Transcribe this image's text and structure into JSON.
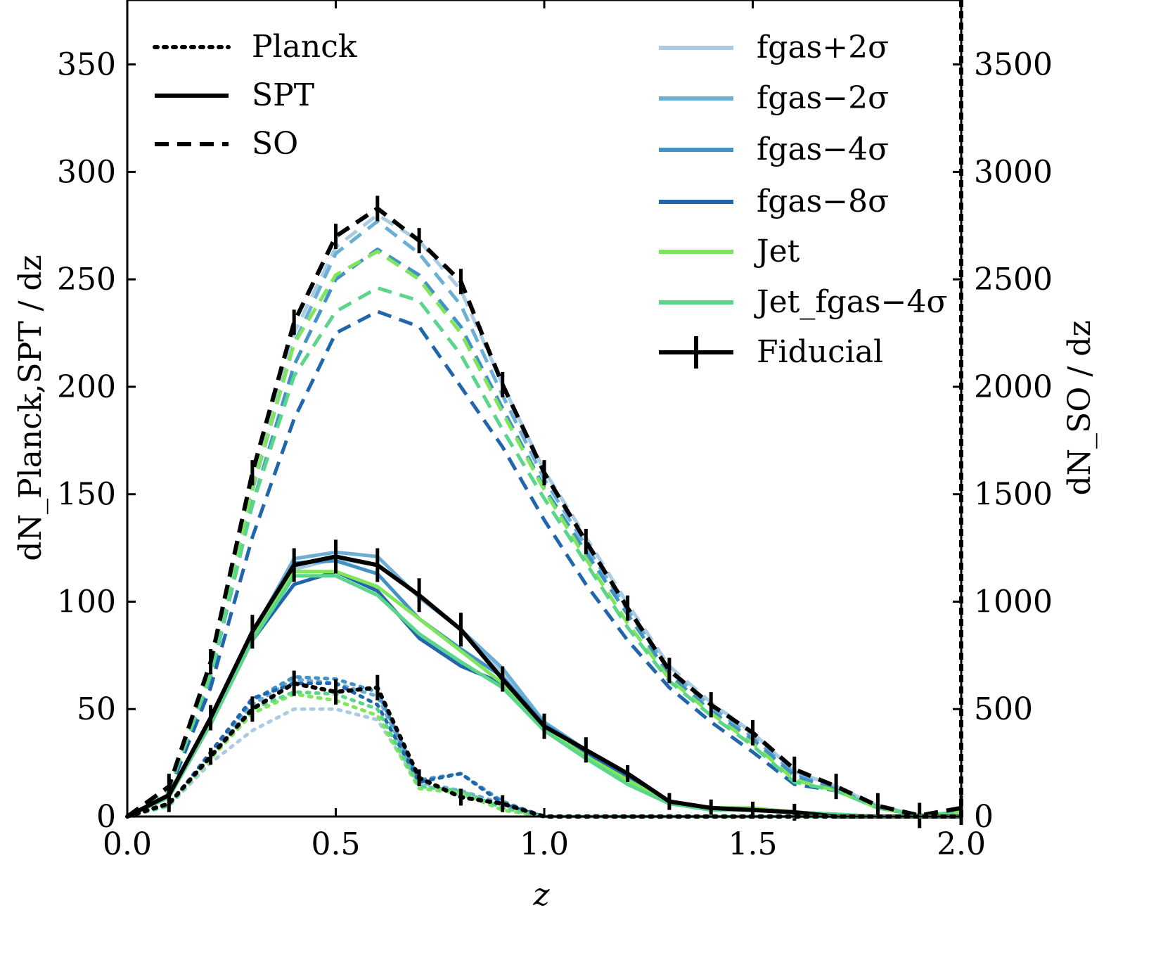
{
  "chart_data": {
    "type": "line",
    "xlabel": "z",
    "ylabel_left": "dN_Planck,SPT / dz",
    "ylabel_right": "dN_SO / dz",
    "xlim": [
      0,
      2
    ],
    "ylim_left": [
      0,
      380
    ],
    "ylim_right": [
      0,
      3800
    ],
    "x_ticks": [
      0,
      0.5,
      1,
      1.5,
      2
    ],
    "x_tick_labels": [
      "0.0",
      "0.5",
      "1.0",
      "1.5",
      "2.0"
    ],
    "y_ticks_left": [
      0,
      50,
      100,
      150,
      200,
      250,
      300,
      350
    ],
    "y_tick_labels_left": [
      "0",
      "50",
      "100",
      "150",
      "200",
      "250",
      "300",
      "350"
    ],
    "y_ticks_right": [
      0,
      500,
      1000,
      1500,
      2000,
      2500,
      3000,
      3500
    ],
    "y_tick_labels_right": [
      "0",
      "500",
      "1000",
      "1500",
      "2000",
      "2500",
      "3000",
      "3500"
    ],
    "x": [
      0,
      0.1,
      0.2,
      0.3,
      0.4,
      0.5,
      0.6,
      0.7,
      0.8,
      0.9,
      1.0,
      1.1,
      1.2,
      1.3,
      1.4,
      1.5,
      1.6,
      1.7,
      1.8,
      1.9,
      2.0
    ],
    "styles_legend": [
      {
        "name": "Planck",
        "dash": "dotted"
      },
      {
        "name": "SPT",
        "dash": "solid"
      },
      {
        "name": "SO",
        "dash": "dashed"
      }
    ],
    "models_legend": [
      {
        "name": "fgas+2σ",
        "color": "#a9cce3"
      },
      {
        "name": "fgas−2σ",
        "color": "#6baed6"
      },
      {
        "name": "fgas−4σ",
        "color": "#4292c6"
      },
      {
        "name": "fgas−8σ",
        "color": "#2166ac"
      },
      {
        "name": "Jet",
        "color": "#7fe55a"
      },
      {
        "name": "Jet_fgas−4σ",
        "color": "#5ad68a"
      },
      {
        "name": "Fiducial",
        "color": "#000000",
        "errorbars": true
      }
    ],
    "series": [
      {
        "name": "SO fgas+2σ",
        "survey": "SO",
        "axis": "right",
        "color": "#a9cce3",
        "values": [
          0,
          140,
          700,
          1550,
          2250,
          2650,
          2800,
          2680,
          2450,
          2010,
          1610,
          1300,
          990,
          700,
          530,
          390,
          210,
          140,
          50,
          5,
          20
        ]
      },
      {
        "name": "SO fgas−2σ",
        "survey": "SO",
        "axis": "right",
        "color": "#6baed6",
        "values": [
          0,
          130,
          680,
          1520,
          2200,
          2620,
          2770,
          2620,
          2380,
          1960,
          1570,
          1260,
          960,
          680,
          510,
          370,
          200,
          130,
          45,
          5,
          20
        ]
      },
      {
        "name": "SO fgas−4σ",
        "survey": "SO",
        "axis": "right",
        "color": "#4292c6",
        "values": [
          0,
          125,
          650,
          1450,
          2100,
          2500,
          2640,
          2520,
          2280,
          1900,
          1530,
          1230,
          940,
          660,
          490,
          360,
          190,
          125,
          42,
          5,
          20
        ]
      },
      {
        "name": "SO fgas−8σ",
        "survey": "SO",
        "axis": "right",
        "color": "#2166ac",
        "values": [
          0,
          115,
          600,
          1300,
          1850,
          2250,
          2350,
          2280,
          2000,
          1720,
          1380,
          1080,
          820,
          600,
          440,
          300,
          150,
          120,
          40,
          5,
          20
        ]
      },
      {
        "name": "SO Jet",
        "survey": "SO",
        "axis": "right",
        "color": "#7fe55a",
        "values": [
          0,
          130,
          690,
          1530,
          2200,
          2520,
          2630,
          2500,
          2250,
          1880,
          1520,
          1200,
          900,
          640,
          480,
          340,
          170,
          120,
          40,
          5,
          20
        ]
      },
      {
        "name": "SO Jet_fgas−4σ",
        "survey": "SO",
        "axis": "right",
        "color": "#5ad68a",
        "values": [
          0,
          125,
          660,
          1450,
          2050,
          2350,
          2460,
          2400,
          2150,
          1800,
          1480,
          1180,
          880,
          630,
          470,
          330,
          160,
          120,
          40,
          5,
          20
        ]
      },
      {
        "name": "SO Fiducial",
        "survey": "SO",
        "axis": "right",
        "color": "#000000",
        "errorbars": true,
        "values": [
          0,
          140,
          720,
          1600,
          2300,
          2700,
          2830,
          2680,
          2490,
          2010,
          1600,
          1280,
          970,
          680,
          520,
          390,
          220,
          140,
          50,
          5,
          40
        ]
      },
      {
        "name": "SPT fgas+2σ",
        "survey": "SPT",
        "axis": "left",
        "color": "#a9cce3",
        "values": [
          0,
          10,
          45,
          84,
          115,
          120,
          117,
          103,
          87,
          67,
          43,
          30,
          20,
          7,
          4,
          3,
          2,
          1,
          0,
          0,
          0
        ]
      },
      {
        "name": "SPT fgas−2σ",
        "survey": "SPT",
        "axis": "left",
        "color": "#6baed6",
        "values": [
          0,
          10,
          45,
          85,
          120,
          123,
          121,
          102,
          87,
          69,
          44,
          31,
          20,
          7,
          4,
          3,
          2,
          1,
          0,
          0,
          0
        ]
      },
      {
        "name": "SPT fgas−4σ",
        "survey": "SPT",
        "axis": "left",
        "color": "#4292c6",
        "values": [
          0,
          10,
          44,
          83,
          118,
          119,
          113,
          92,
          78,
          65,
          43,
          31,
          19,
          7,
          4,
          3,
          2,
          1,
          0,
          0,
          0
        ]
      },
      {
        "name": "SPT fgas−8σ",
        "survey": "SPT",
        "axis": "left",
        "color": "#2166ac",
        "values": [
          0,
          10,
          43,
          82,
          108,
          114,
          105,
          83,
          70,
          62,
          42,
          30,
          18,
          6,
          4,
          3,
          2,
          1,
          0,
          0,
          0
        ]
      },
      {
        "name": "SPT Jet",
        "survey": "SPT",
        "axis": "left",
        "color": "#7fe55a",
        "values": [
          0,
          9,
          44,
          83,
          114,
          114,
          107,
          92,
          77,
          62,
          41,
          28,
          17,
          6,
          4,
          4,
          2,
          1,
          0,
          0,
          0
        ]
      },
      {
        "name": "SPT Jet_fgas−4σ",
        "survey": "SPT",
        "axis": "left",
        "color": "#5ad68a",
        "values": [
          0,
          9,
          43,
          82,
          112,
          112,
          103,
          85,
          72,
          60,
          40,
          27,
          15,
          6,
          3,
          3,
          2,
          1,
          0,
          0,
          0
        ]
      },
      {
        "name": "SPT Fiducial",
        "survey": "SPT",
        "axis": "left",
        "color": "#000000",
        "errorbars": true,
        "values": [
          0,
          10,
          46,
          86,
          117,
          121,
          117,
          103,
          87,
          64,
          42,
          31,
          20,
          7,
          4,
          3,
          2,
          0,
          0,
          0,
          0
        ]
      },
      {
        "name": "Planck fgas+2σ",
        "survey": "Planck",
        "axis": "left",
        "color": "#a9cce3",
        "values": [
          0,
          5,
          25,
          40,
          50,
          50,
          45,
          15,
          10,
          5,
          0,
          0,
          0,
          0,
          0,
          0,
          0,
          0,
          0,
          0,
          0
        ]
      },
      {
        "name": "Planck fgas−2σ",
        "survey": "Planck",
        "axis": "left",
        "color": "#6baed6",
        "values": [
          0,
          5,
          30,
          52,
          64,
          62,
          56,
          16,
          12,
          6,
          0,
          0,
          0,
          0,
          0,
          0,
          0,
          0,
          0,
          0,
          0
        ]
      },
      {
        "name": "Planck fgas−4σ",
        "survey": "Planck",
        "axis": "left",
        "color": "#4292c6",
        "values": [
          0,
          5,
          30,
          54,
          65,
          64,
          58,
          17,
          20,
          7,
          0,
          0,
          0,
          0,
          0,
          0,
          0,
          0,
          0,
          0,
          0
        ]
      },
      {
        "name": "Planck fgas−8σ",
        "survey": "Planck",
        "axis": "left",
        "color": "#2166ac",
        "values": [
          0,
          5,
          30,
          55,
          62,
          62,
          52,
          16,
          20,
          6,
          0,
          0,
          0,
          0,
          0,
          0,
          0,
          0,
          0,
          0,
          0
        ]
      },
      {
        "name": "Planck Jet",
        "survey": "Planck",
        "axis": "left",
        "color": "#7fe55a",
        "values": [
          0,
          5,
          27,
          48,
          57,
          54,
          47,
          13,
          11,
          3,
          0,
          0,
          0,
          0,
          0,
          0,
          0,
          0,
          0,
          0,
          0
        ]
      },
      {
        "name": "Planck Jet_fgas−4σ",
        "survey": "Planck",
        "axis": "left",
        "color": "#5ad68a",
        "values": [
          0,
          5,
          28,
          50,
          58,
          57,
          50,
          14,
          12,
          4,
          0,
          0,
          0,
          0,
          0,
          0,
          0,
          0,
          0,
          0,
          0
        ]
      },
      {
        "name": "Planck Fiducial",
        "survey": "Planck",
        "axis": "left",
        "color": "#000000",
        "errorbars": true,
        "values": [
          0,
          6,
          28,
          50,
          62,
          58,
          60,
          18,
          9,
          6,
          0,
          0,
          0,
          0,
          0,
          0,
          0,
          0,
          0,
          0,
          0
        ]
      }
    ]
  }
}
